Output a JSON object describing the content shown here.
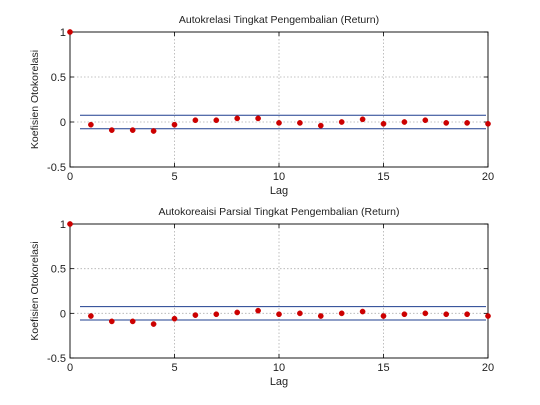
{
  "colors": {
    "background": "#ffffff",
    "axes": "#000000",
    "grid": "#b0b0b0",
    "point": "#cc0000",
    "bound_line": "#1f3f8f"
  },
  "chart_data": [
    {
      "type": "scatter",
      "title": "Autokrelasi Tingkat Pengembalian (Return)",
      "xlabel": "Lag",
      "ylabel": "Koefisien Otokorelasi",
      "xlim": [
        0,
        20
      ],
      "ylim": [
        -0.5,
        1
      ],
      "xticks": [
        0,
        5,
        10,
        15,
        20
      ],
      "yticks": [
        -0.5,
        0,
        0.5,
        1
      ],
      "grid": true,
      "x": [
        0,
        1,
        2,
        3,
        4,
        5,
        6,
        7,
        8,
        9,
        10,
        11,
        12,
        13,
        14,
        15,
        16,
        17,
        18,
        19,
        20
      ],
      "y": [
        1.0,
        -0.03,
        -0.09,
        -0.09,
        -0.1,
        -0.03,
        0.02,
        0.02,
        0.04,
        0.04,
        -0.01,
        -0.01,
        -0.04,
        0.0,
        0.03,
        -0.02,
        0.0,
        0.02,
        -0.01,
        -0.01,
        -0.02
      ],
      "bounds": [
        0.075,
        -0.075
      ]
    },
    {
      "type": "scatter",
      "title": "Autokoreaisi Parsial Tingkat Pengembalian (Return)",
      "xlabel": "Lag",
      "ylabel": "Koefisien Otokorelasi",
      "xlim": [
        0,
        20
      ],
      "ylim": [
        -0.5,
        1
      ],
      "xticks": [
        0,
        5,
        10,
        15,
        20
      ],
      "yticks": [
        -0.5,
        0,
        0.5,
        1
      ],
      "grid": true,
      "x": [
        0,
        1,
        2,
        3,
        4,
        5,
        6,
        7,
        8,
        9,
        10,
        11,
        12,
        13,
        14,
        15,
        16,
        17,
        18,
        19,
        20
      ],
      "y": [
        1.0,
        -0.03,
        -0.09,
        -0.09,
        -0.12,
        -0.06,
        -0.02,
        -0.01,
        0.01,
        0.03,
        -0.01,
        0.0,
        -0.03,
        0.0,
        0.02,
        -0.03,
        -0.01,
        0.0,
        -0.01,
        -0.01,
        -0.03
      ],
      "bounds": [
        0.075,
        -0.075
      ]
    }
  ]
}
